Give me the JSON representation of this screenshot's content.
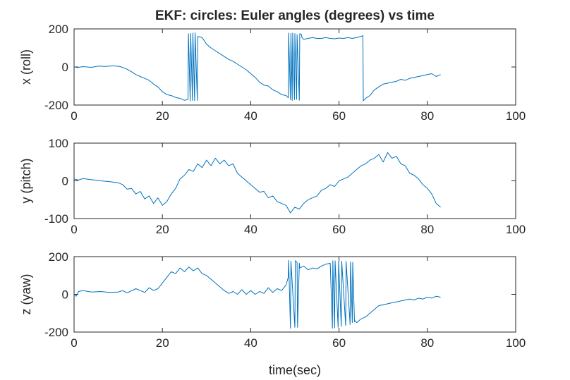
{
  "title": "EKF: circles: Euler angles (degrees) vs time",
  "xlabel": "time(sec)",
  "colors": {
    "line": "#0072BD",
    "axes": "#262626"
  },
  "chart_data": [
    {
      "type": "line",
      "ylabel": "x (roll)",
      "xlim": [
        0,
        100
      ],
      "ylim": [
        -200,
        200
      ],
      "xticks": [
        0,
        20,
        40,
        60,
        80,
        100
      ],
      "yticks": [
        -200,
        0,
        200
      ],
      "xtick_labels": [
        "0",
        "20",
        "40",
        "60",
        "80",
        "100"
      ],
      "ytick_labels": [
        "-200",
        "0",
        "200"
      ],
      "series": [
        {
          "x": [
            0,
            0.8,
            2,
            4,
            5.5,
            7,
            9,
            10.5,
            12,
            13,
            14,
            15,
            16,
            17,
            18,
            19,
            20,
            21,
            22,
            23,
            24,
            25,
            25.8,
            25.9,
            26.3,
            26.4,
            26.8,
            26.9,
            27.3,
            27.4,
            27.9,
            28,
            29,
            30,
            31,
            32,
            33,
            34,
            35,
            36,
            37,
            38,
            39,
            40,
            41,
            42,
            43,
            44,
            45,
            46,
            47,
            48,
            48.5,
            48.6,
            49,
            49.1,
            49.4,
            49.5,
            49.9,
            50,
            50.4,
            50.5,
            51,
            51.1,
            51.5,
            51.6,
            52,
            53,
            54,
            55,
            56,
            57,
            58,
            59,
            60,
            61,
            62,
            63,
            64,
            65,
            65.4,
            65.5,
            66,
            67,
            68,
            69,
            70,
            71,
            72,
            73,
            74,
            75,
            76,
            77,
            78,
            79,
            80,
            81,
            82,
            83
          ],
          "y": [
            0,
            -3,
            2,
            -2,
            5,
            3,
            6,
            2,
            -12,
            -25,
            -40,
            -50,
            -60,
            -70,
            -90,
            -105,
            -130,
            -145,
            -150,
            -160,
            -165,
            -175,
            -170,
            175,
            -178,
            176,
            -176,
            178,
            -177,
            180,
            -175,
            160,
            155,
            120,
            100,
            85,
            70,
            55,
            40,
            30,
            15,
            0,
            -15,
            -35,
            -55,
            -80,
            -95,
            -100,
            -120,
            -130,
            -145,
            -150,
            -162,
            178,
            -172,
            176,
            -176,
            178,
            -172,
            175,
            -170,
            170,
            -175,
            175,
            170,
            155,
            145,
            150,
            155,
            150,
            150,
            155,
            150,
            148,
            152,
            150,
            155,
            150,
            155,
            160,
            165,
            -178,
            -165,
            -150,
            -120,
            -105,
            -90,
            -85,
            -80,
            -75,
            -65,
            -70,
            -60,
            -55,
            -50,
            -45,
            -40,
            -35,
            -50,
            -40
          ]
        }
      ]
    },
    {
      "type": "line",
      "ylabel": "y (pitch)",
      "xlim": [
        0,
        100
      ],
      "ylim": [
        -100,
        100
      ],
      "xticks": [
        0,
        20,
        40,
        60,
        80,
        100
      ],
      "yticks": [
        -100,
        0,
        100
      ],
      "xtick_labels": [
        "0",
        "20",
        "40",
        "60",
        "80",
        "100"
      ],
      "ytick_labels": [
        "-100",
        "0",
        "100"
      ],
      "series": [
        {
          "x": [
            0,
            1,
            2,
            4,
            6,
            8,
            10,
            11,
            12,
            13,
            14,
            15,
            16,
            17,
            18,
            19,
            20,
            21,
            22,
            23,
            24,
            25,
            26,
            27,
            28,
            29,
            30,
            31,
            32,
            33,
            34,
            35,
            36,
            37,
            38,
            39,
            40,
            41,
            42,
            43,
            44,
            45,
            46,
            47,
            48,
            48.5,
            49,
            50,
            51,
            52,
            53,
            54,
            55,
            56,
            57,
            58,
            59,
            60,
            61,
            62,
            63,
            64,
            65,
            66,
            67,
            68,
            69,
            70,
            71,
            72,
            73,
            74,
            75,
            76,
            77,
            78,
            79,
            80,
            81,
            82,
            83
          ],
          "y": [
            5,
            2,
            6,
            3,
            0,
            -2,
            -5,
            -10,
            -22,
            -20,
            -35,
            -28,
            -48,
            -40,
            -60,
            -45,
            -65,
            -55,
            -35,
            -20,
            5,
            15,
            30,
            25,
            45,
            35,
            55,
            40,
            60,
            45,
            55,
            40,
            45,
            20,
            10,
            0,
            -10,
            -20,
            -30,
            -28,
            -45,
            -40,
            -55,
            -60,
            -65,
            -75,
            -85,
            -70,
            -75,
            -60,
            -50,
            -45,
            -40,
            -25,
            -20,
            -10,
            -15,
            0,
            5,
            10,
            20,
            30,
            40,
            45,
            55,
            60,
            70,
            50,
            75,
            60,
            65,
            45,
            40,
            20,
            15,
            5,
            -10,
            -20,
            -35,
            -60,
            -70
          ]
        }
      ]
    },
    {
      "type": "line",
      "ylabel": "z (yaw)",
      "xlim": [
        0,
        100
      ],
      "ylim": [
        -200,
        200
      ],
      "xticks": [
        0,
        20,
        40,
        60,
        80,
        100
      ],
      "yticks": [
        -200,
        0,
        200
      ],
      "xtick_labels": [
        "0",
        "20",
        "40",
        "60",
        "80",
        "100"
      ],
      "ytick_labels": [
        "-200",
        "0",
        "200"
      ],
      "series": [
        {
          "x": [
            0,
            0.5,
            1,
            2,
            4,
            6,
            8,
            10,
            11,
            12,
            14,
            16,
            17,
            18,
            19,
            20,
            21,
            22,
            23,
            24,
            25,
            26,
            27,
            28,
            29,
            30,
            31,
            32,
            33,
            34,
            35,
            36,
            37,
            38,
            39,
            40,
            41,
            42,
            43,
            44,
            45,
            46,
            47,
            48,
            48.5,
            48.6,
            49,
            49.1,
            50,
            50.1,
            50.5,
            50.6,
            51,
            51.1,
            52,
            53,
            54,
            55,
            56,
            57,
            58,
            58.5,
            58.6,
            59,
            59.1,
            59.8,
            59.9,
            60.5,
            60.6,
            61.5,
            61.6,
            62.5,
            62.6,
            63,
            63.1,
            63.5,
            63.6,
            64,
            65,
            66,
            67,
            68,
            69,
            70,
            71,
            72,
            73,
            74,
            75,
            76,
            77,
            78,
            79,
            80,
            81,
            82,
            83
          ],
          "y": [
            0,
            -10,
            15,
            20,
            12,
            15,
            10,
            12,
            20,
            8,
            30,
            10,
            35,
            20,
            30,
            60,
            90,
            120,
            110,
            140,
            120,
            145,
            125,
            140,
            110,
            100,
            80,
            60,
            40,
            20,
            5,
            15,
            0,
            25,
            0,
            20,
            0,
            15,
            5,
            35,
            10,
            30,
            20,
            50,
            90,
            180,
            -180,
            175,
            -175,
            178,
            170,
            -175,
            165,
            140,
            150,
            130,
            140,
            135,
            150,
            160,
            165,
            -180,
            178,
            -178,
            178,
            -175,
            176,
            -170,
            176,
            -165,
            175,
            -160,
            172,
            -150,
            170,
            -145,
            -140,
            -150,
            -130,
            -120,
            -100,
            -80,
            -60,
            -55,
            -50,
            -45,
            -40,
            -35,
            -30,
            -25,
            -30,
            -20,
            -25,
            -15,
            -20,
            -10,
            -15
          ]
        }
      ]
    }
  ]
}
